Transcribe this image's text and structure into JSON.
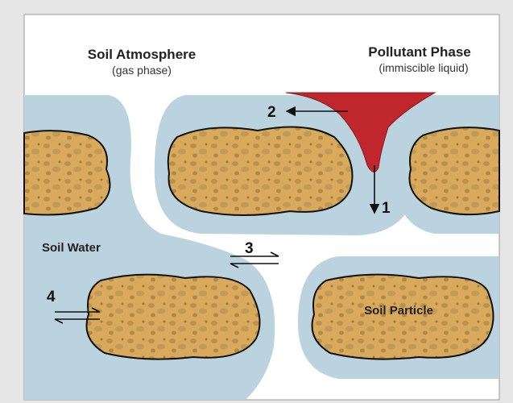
{
  "labels": {
    "soil_atmosphere": "Soil Atmosphere",
    "gas_phase": "(gas phase)",
    "pollutant_phase": "Pollutant Phase",
    "immiscible_liquid": "(immiscible liquid)",
    "soil_water": "Soil Water",
    "soil_particle": "Soil Particle"
  },
  "arrow_labels": [
    "1",
    "2",
    "3",
    "4"
  ]
}
